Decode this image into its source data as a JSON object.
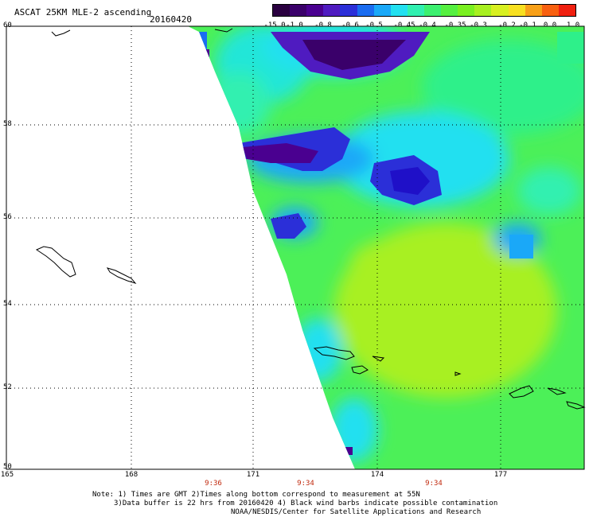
{
  "header": {
    "title": "ASCAT 25KM MLE-2 ascending",
    "date": "20160420"
  },
  "colorbar": {
    "labels": [
      "-15.0",
      "-1.0",
      "-0.8",
      "-0.6",
      "-0.5",
      "-0.45",
      "-0.4",
      "-0.35",
      "-0.3",
      "-0.2",
      "-0.1",
      "0.0",
      "1.0"
    ],
    "colors": [
      "#2a0040",
      "#3a006a",
      "#4a0090",
      "#4f1bc0",
      "#2b2fd8",
      "#1a6cf0",
      "#1aa8f8",
      "#22e0f0",
      "#30f0b0",
      "#3cf070",
      "#55f040",
      "#7af020",
      "#a8f020",
      "#d8f020",
      "#f8e020",
      "#f8a018",
      "#f86010",
      "#f02010"
    ]
  },
  "map": {
    "lat_labels": [
      "60",
      "58",
      "56",
      "54",
      "52",
      "50"
    ],
    "lon_labels": [
      "165",
      "168",
      "171",
      "174",
      "177"
    ],
    "time_labels": [
      "9:36",
      "9:34",
      "9:34"
    ]
  },
  "footer": {
    "note1": "Note: 1) Times are GMT 2)Times along bottom correspond to measurement at 55N",
    "note2": "3)Data buffer is 22 hrs from 20160420 4) Black wind barbs indicate possible contamination",
    "note3": "NOAA/NESDIS/Center for Satellite Applications and Research"
  }
}
